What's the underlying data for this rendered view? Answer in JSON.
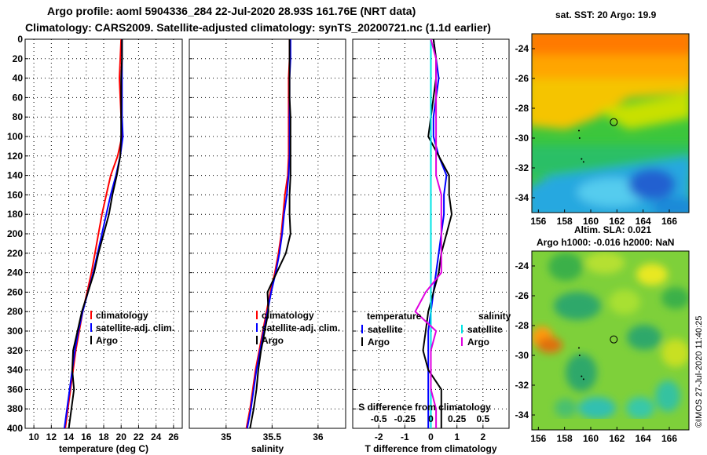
{
  "title": {
    "line1": "Argo profile: aoml 5904336_284 22-Jul-2020 28.93S 161.76E (NRT data)",
    "line2": "Climatology: CARS2009. Satellite-adjusted climatology: synTS_20200721.nc (1.1d earlier)"
  },
  "footer": "©IMOS 27-Jul-2020 11:40:25",
  "colors": {
    "climatology": "#ff0000",
    "satellite": "#0000ff",
    "argo": "#000000",
    "sat_salinity": "#00e5e5",
    "argo_salinity": "#e000e0"
  },
  "chart_data": [
    {
      "type": "line",
      "title": "",
      "xlabel": "temperature (deg C)",
      "ylabel": "",
      "xlim": [
        9,
        27
      ],
      "ylim": [
        400,
        0
      ],
      "xticks": [
        10,
        12,
        14,
        16,
        18,
        20,
        22,
        24,
        26
      ],
      "yticks": [
        0,
        20,
        40,
        60,
        80,
        100,
        120,
        140,
        160,
        180,
        200,
        220,
        240,
        260,
        280,
        300,
        320,
        340,
        360,
        380,
        400
      ],
      "legend": [
        "climatology",
        "satellite-adj. clim.",
        "Argo"
      ],
      "series": [
        {
          "name": "climatology",
          "color": "#ff0000",
          "x": [
            20.0,
            19.9,
            19.8,
            19.9,
            20.0,
            20.1,
            19.6,
            18.8,
            18.3,
            17.8,
            17.4,
            17.0,
            16.6,
            16.1,
            15.6,
            15.2,
            14.8,
            14.5,
            14.2,
            13.9,
            13.6
          ],
          "y": [
            0,
            20,
            40,
            60,
            80,
            100,
            120,
            140,
            160,
            180,
            200,
            220,
            240,
            260,
            280,
            300,
            320,
            340,
            360,
            380,
            400
          ]
        },
        {
          "name": "satellite-adj. clim.",
          "color": "#0000ff",
          "x": [
            20.1,
            20.1,
            20.1,
            20.1,
            20.1,
            20.2,
            19.9,
            19.4,
            18.8,
            18.3,
            17.8,
            17.3,
            16.8,
            16.2,
            15.6,
            15.1,
            14.7,
            14.4,
            14.1,
            13.8,
            13.5
          ],
          "y": [
            0,
            20,
            40,
            60,
            80,
            100,
            120,
            140,
            160,
            180,
            200,
            220,
            240,
            260,
            280,
            300,
            320,
            340,
            360,
            380,
            400
          ]
        },
        {
          "name": "Argo",
          "color": "#000000",
          "x": [
            20.1,
            20.1,
            20.0,
            20.0,
            20.0,
            20.0,
            19.9,
            19.5,
            19.0,
            18.6,
            18.0,
            17.4,
            16.9,
            16.2,
            15.5,
            15.0,
            14.5,
            14.4,
            14.6,
            14.3,
            14.0
          ],
          "y": [
            0,
            20,
            40,
            60,
            80,
            100,
            120,
            140,
            160,
            180,
            200,
            220,
            240,
            260,
            280,
            300,
            320,
            340,
            360,
            380,
            400
          ]
        }
      ]
    },
    {
      "type": "line",
      "title": "",
      "xlabel": "salinity",
      "ylabel": "",
      "xlim": [
        34.6,
        36.3
      ],
      "ylim": [
        400,
        0
      ],
      "xticks": [
        35,
        35.5,
        36
      ],
      "legend": [
        "climatology",
        "satellite-adj. clim.",
        "Argo"
      ],
      "series": [
        {
          "name": "climatology",
          "color": "#ff0000",
          "x": [
            35.69,
            35.69,
            35.68,
            35.68,
            35.68,
            35.68,
            35.68,
            35.67,
            35.64,
            35.62,
            35.6,
            35.57,
            35.53,
            35.48,
            35.44,
            35.4,
            35.36,
            35.32,
            35.29,
            35.26,
            35.22
          ],
          "y": [
            0,
            20,
            40,
            60,
            80,
            100,
            120,
            140,
            160,
            180,
            200,
            220,
            240,
            260,
            280,
            300,
            320,
            340,
            360,
            380,
            400
          ]
        },
        {
          "name": "satellite-adj. clim.",
          "color": "#0000ff",
          "x": [
            35.7,
            35.7,
            35.69,
            35.69,
            35.69,
            35.69,
            35.69,
            35.68,
            35.66,
            35.63,
            35.61,
            35.58,
            35.54,
            35.49,
            35.45,
            35.41,
            35.37,
            35.33,
            35.3,
            35.27,
            35.23
          ],
          "y": [
            0,
            20,
            40,
            60,
            80,
            100,
            120,
            140,
            160,
            180,
            200,
            220,
            240,
            260,
            280,
            300,
            320,
            340,
            360,
            380,
            400
          ]
        },
        {
          "name": "Argo",
          "color": "#000000",
          "x": [
            35.69,
            35.69,
            35.69,
            35.69,
            35.7,
            35.7,
            35.7,
            35.7,
            35.69,
            35.69,
            35.7,
            35.65,
            35.55,
            35.45,
            35.46,
            35.42,
            35.38,
            35.35,
            35.33,
            35.3,
            35.26
          ],
          "y": [
            0,
            20,
            40,
            60,
            80,
            100,
            120,
            140,
            160,
            180,
            200,
            220,
            240,
            260,
            280,
            300,
            320,
            340,
            360,
            380,
            400
          ]
        }
      ]
    },
    {
      "type": "line",
      "title": "",
      "xlabel": "T difference from climatology",
      "xlabel_top": "S difference from climatology",
      "ylabel": "",
      "xlim": [
        -3,
        3
      ],
      "ylim": [
        400,
        0
      ],
      "xticks": [
        -2,
        -1,
        0,
        1,
        2
      ],
      "xticks_s": [
        -0.5,
        -0.25,
        0,
        0.25,
        0.5
      ],
      "legend": [
        "temperature",
        "satellite",
        "Argo",
        "salinity",
        "satellite",
        "Argo"
      ],
      "series": [
        {
          "name": "T satellite",
          "color": "#0000ff",
          "x": [
            0.1,
            0.2,
            0.3,
            0.2,
            0.1,
            0.1,
            0.3,
            0.6,
            0.5,
            0.5,
            0.4,
            0.3,
            0.2,
            0.1,
            0.0,
            -0.1,
            -0.1,
            -0.1,
            -0.1,
            -0.1,
            -0.1
          ],
          "y": [
            0,
            20,
            40,
            60,
            80,
            100,
            120,
            140,
            160,
            180,
            200,
            220,
            240,
            260,
            280,
            300,
            320,
            340,
            360,
            380,
            400
          ]
        },
        {
          "name": "T Argo",
          "color": "#000000",
          "x": [
            0.1,
            0.2,
            0.2,
            0.1,
            0.0,
            -0.1,
            0.3,
            0.7,
            0.7,
            0.8,
            0.6,
            0.4,
            0.3,
            0.1,
            -0.1,
            -0.2,
            -0.3,
            -0.1,
            0.4,
            0.4,
            0.4
          ],
          "y": [
            0,
            20,
            40,
            60,
            80,
            100,
            120,
            140,
            160,
            180,
            200,
            220,
            240,
            260,
            280,
            300,
            320,
            340,
            360,
            380,
            400
          ]
        },
        {
          "name": "S satellite",
          "color": "#00e5e5",
          "x": [
            0.0,
            0.0,
            0.0,
            0.0,
            0.0,
            0.0,
            0.0,
            0.0,
            0.0,
            0.0,
            0.0,
            0.0,
            0.0,
            0.0,
            0.0,
            0.0,
            0.0,
            0.0,
            0.0,
            0.0,
            0.0
          ],
          "y": [
            0,
            20,
            40,
            60,
            80,
            100,
            120,
            140,
            160,
            180,
            200,
            220,
            240,
            260,
            280,
            300,
            320,
            340,
            360,
            380,
            400
          ]
        },
        {
          "name": "S Argo",
          "color": "#e000e0",
          "x": [
            0.0,
            0.05,
            0.05,
            0.05,
            0.05,
            0.05,
            0.05,
            0.05,
            0.1,
            0.1,
            0.1,
            0.1,
            0.1,
            -0.05,
            -0.15,
            0.05,
            0.0,
            0.0,
            0.0,
            0.05,
            0.05
          ],
          "y": [
            0,
            20,
            40,
            60,
            80,
            100,
            120,
            140,
            160,
            180,
            200,
            220,
            240,
            260,
            280,
            300,
            320,
            340,
            360,
            380,
            400
          ]
        }
      ]
    },
    {
      "type": "heatmap",
      "title": "sat. SST: 20 Argo: 19.9",
      "xlim": [
        155.5,
        167.5
      ],
      "ylim": [
        -35,
        -23
      ],
      "xticks": [
        156,
        158,
        160,
        162,
        164,
        166
      ],
      "yticks": [
        -24,
        -26,
        -28,
        -30,
        -32,
        -34
      ],
      "profile_lon": 161.76,
      "profile_lat": -28.93
    },
    {
      "type": "heatmap",
      "title": "Altim. SLA: 0.021",
      "subtitle": "Argo h1000: -0.016 h2000: NaN",
      "xlim": [
        155.5,
        167.5
      ],
      "ylim": [
        -35,
        -23
      ],
      "xticks": [
        156,
        158,
        160,
        162,
        164,
        166
      ],
      "yticks": [
        -24,
        -26,
        -28,
        -30,
        -32,
        -34
      ],
      "profile_lon": 161.76,
      "profile_lat": -28.93
    }
  ]
}
